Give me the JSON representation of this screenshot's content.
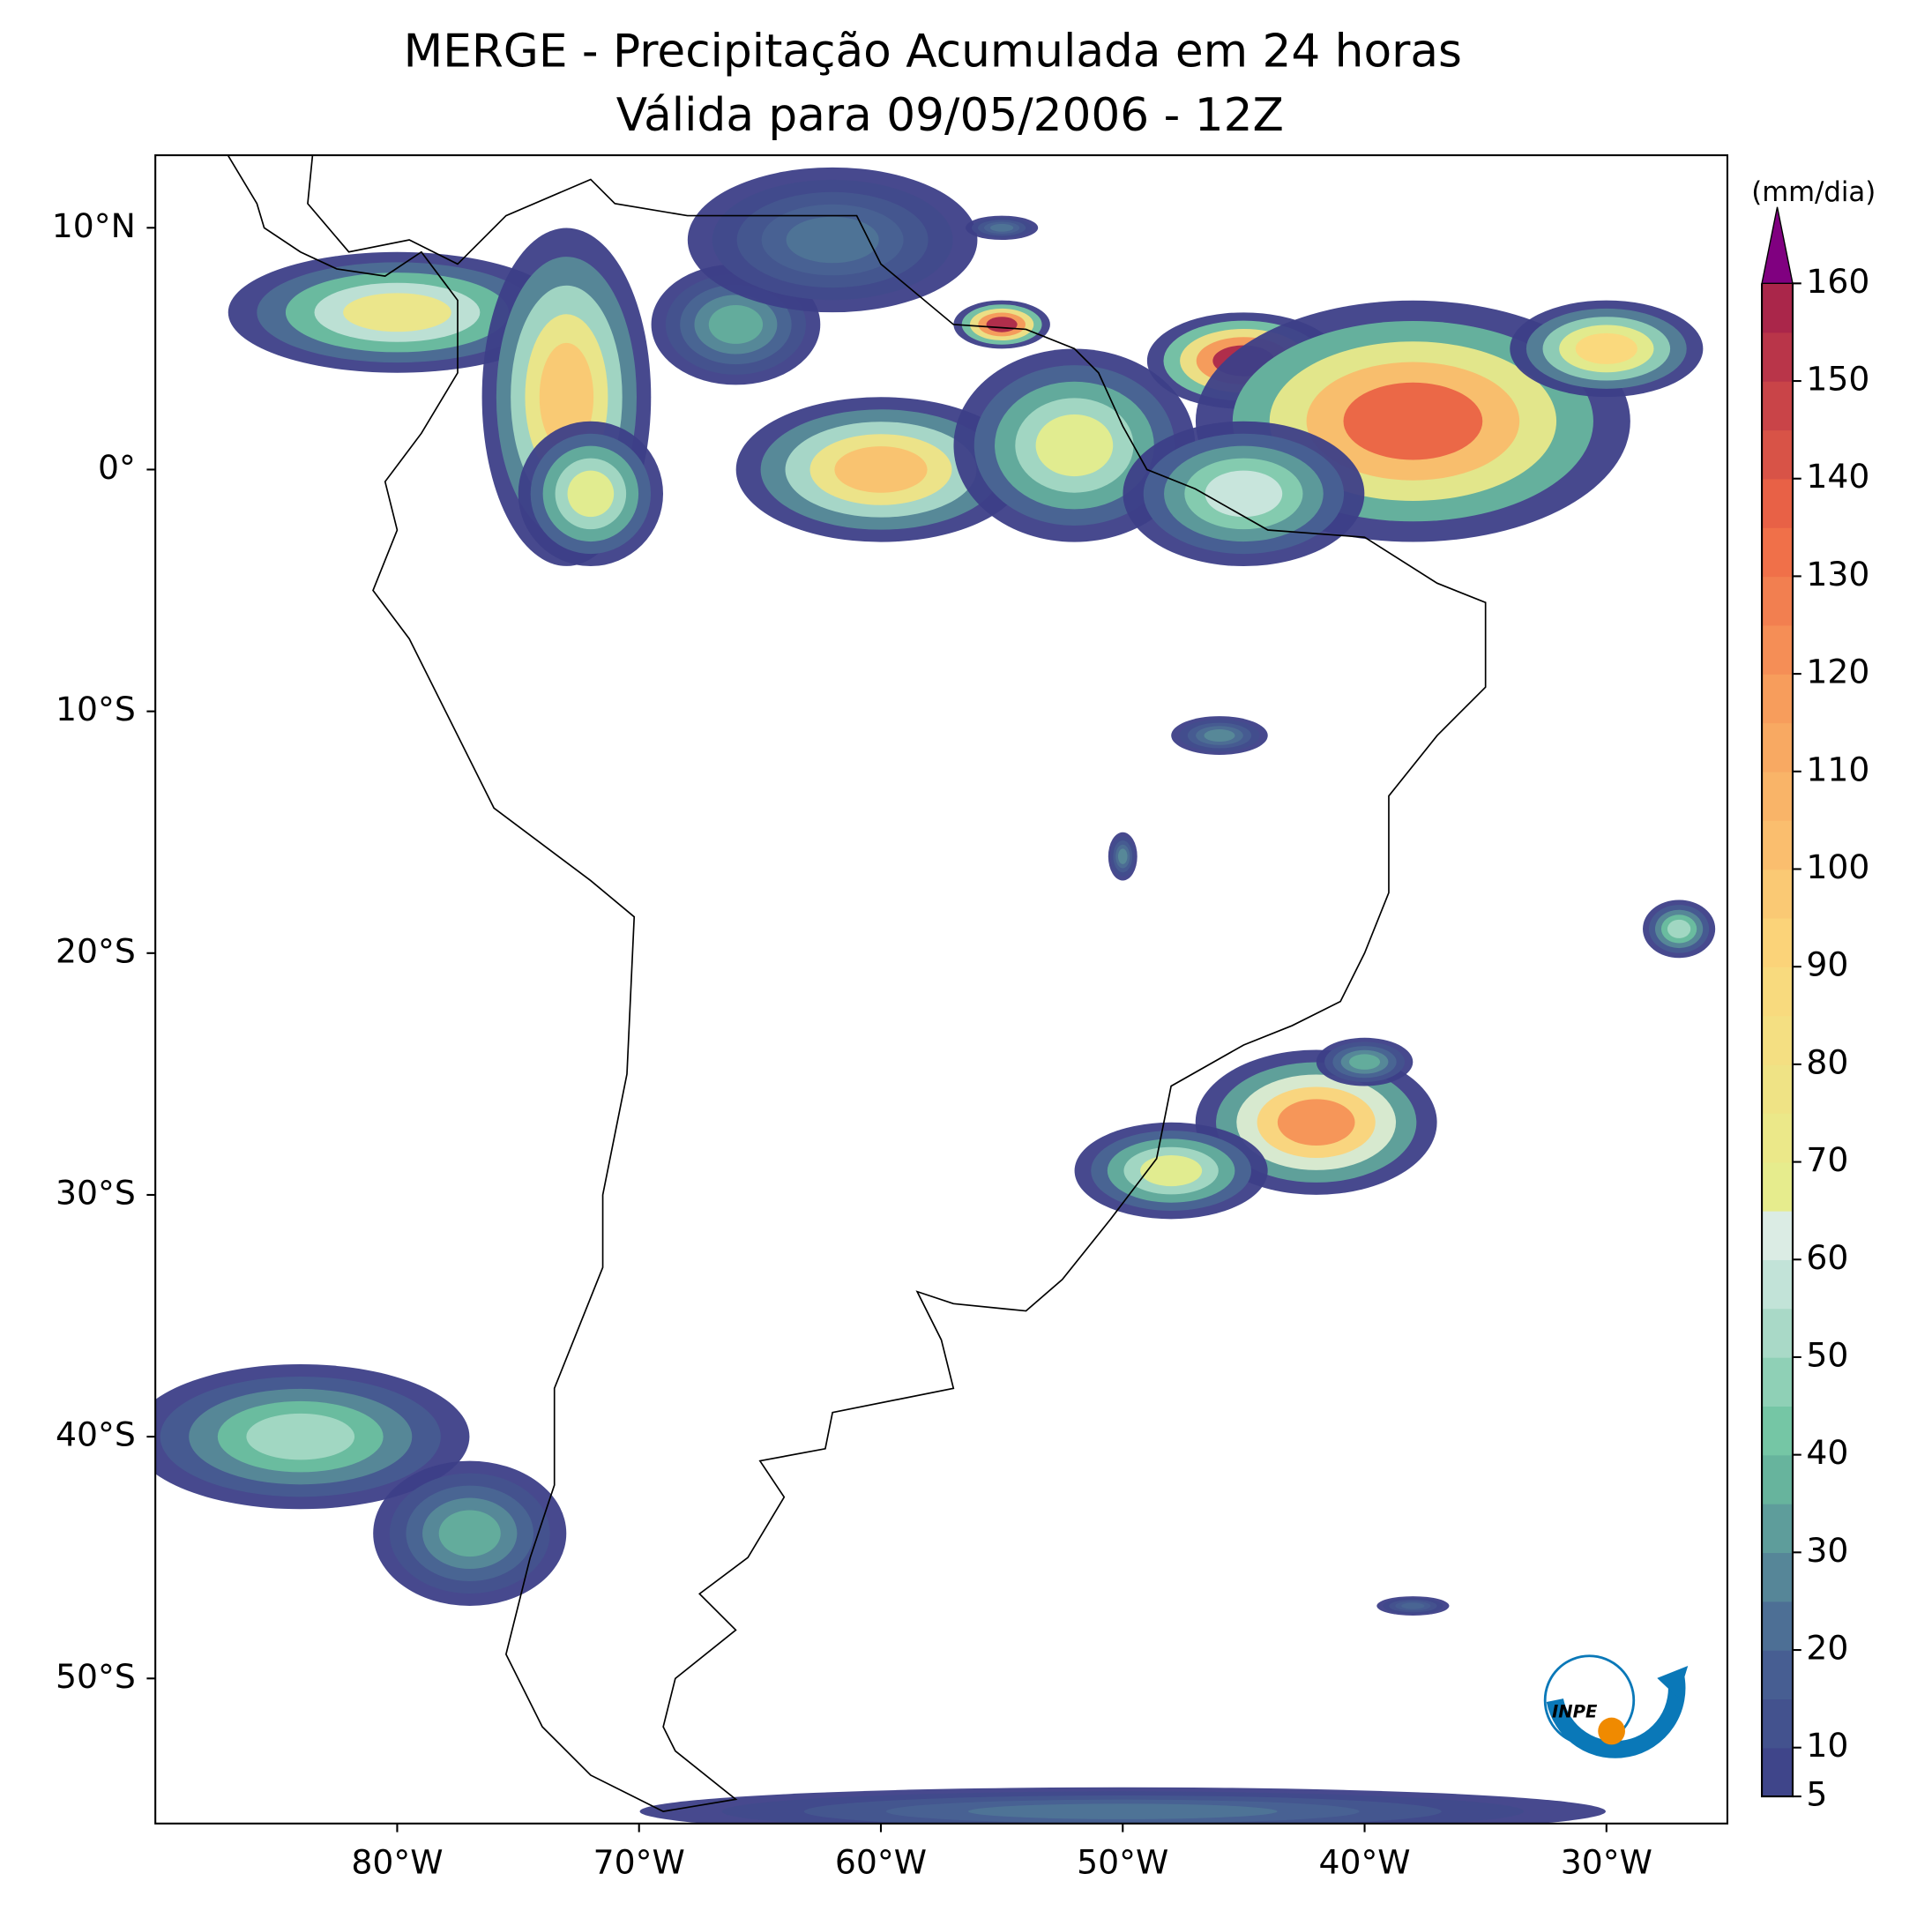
{
  "chart_data": {
    "type": "map",
    "title": "MERGE - Precipitação Acumulada em 24 horas",
    "subtitle": "Válida para 09/05/2006 - 12Z",
    "xlim": [
      -90,
      -25
    ],
    "ylim": [
      -56,
      13
    ],
    "xticks": [
      {
        "value": -80,
        "label": "80°W"
      },
      {
        "value": -70,
        "label": "70°W"
      },
      {
        "value": -60,
        "label": "60°W"
      },
      {
        "value": -50,
        "label": "50°W"
      },
      {
        "value": -40,
        "label": "40°W"
      },
      {
        "value": -30,
        "label": "30°W"
      }
    ],
    "yticks": [
      {
        "value": 10,
        "label": "10°N"
      },
      {
        "value": 0,
        "label": "0°"
      },
      {
        "value": -10,
        "label": "10°S"
      },
      {
        "value": -20,
        "label": "20°S"
      },
      {
        "value": -30,
        "label": "30°S"
      },
      {
        "value": -40,
        "label": "40°S"
      },
      {
        "value": -50,
        "label": "50°S"
      }
    ],
    "colorbar": {
      "label": "(mm/dia)",
      "lim": [
        5,
        160
      ],
      "ticks": [
        5,
        10,
        20,
        30,
        40,
        50,
        60,
        70,
        80,
        90,
        100,
        110,
        120,
        130,
        140,
        150,
        160
      ]
    },
    "logo": "INPE"
  }
}
